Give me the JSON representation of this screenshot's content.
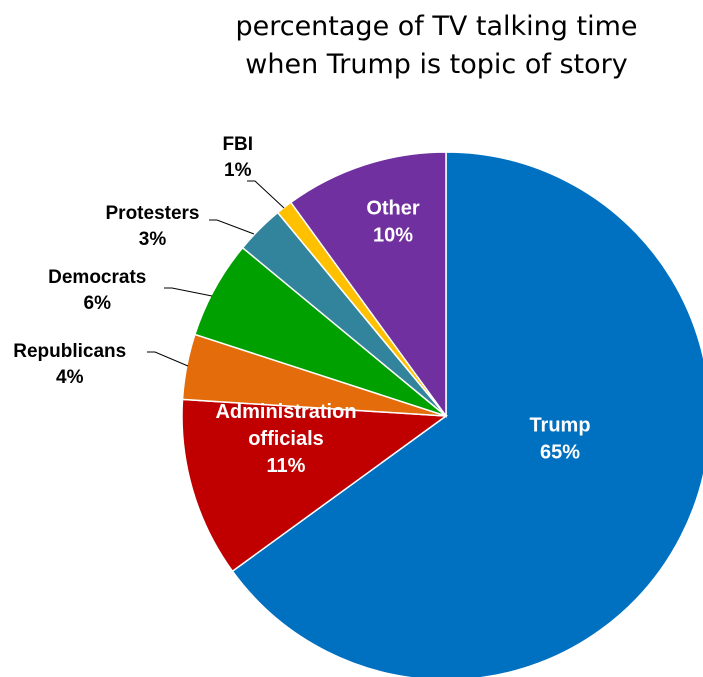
{
  "chart_data": {
    "type": "pie",
    "title_lines": [
      "percentage of TV talking time",
      "when Trump is topic of story"
    ],
    "slices": [
      {
        "label": "Trump",
        "value": 65,
        "display": "65%",
        "color": "#0070C0",
        "label_pos": "inside"
      },
      {
        "label": "Administration officials",
        "label_lines": [
          "Administration",
          "officials"
        ],
        "value": 11,
        "display": "11%",
        "color": "#C00000",
        "label_pos": "inside"
      },
      {
        "label": "Republicans",
        "value": 4,
        "display": "4%",
        "color": "#E46C0A",
        "label_pos": "outside"
      },
      {
        "label": "Democrats",
        "value": 6,
        "display": "6%",
        "color": "#00A000",
        "label_pos": "outside"
      },
      {
        "label": "Protesters",
        "value": 3,
        "display": "3%",
        "color": "#31849B",
        "label_pos": "outside"
      },
      {
        "label": "FBI",
        "value": 1,
        "display": "1%",
        "color": "#FFC000",
        "label_pos": "outside"
      },
      {
        "label": "Other",
        "value": 10,
        "display": "10%",
        "color": "#7030A0",
        "label_pos": "inside"
      }
    ]
  }
}
